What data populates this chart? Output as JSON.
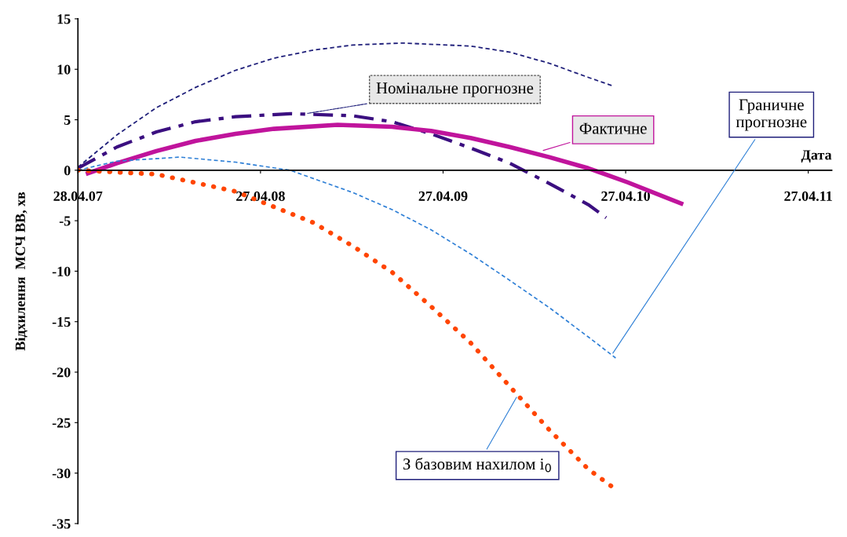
{
  "chart_data": {
    "type": "line",
    "xlabel": "Дата",
    "ylabel": "Відхилення  МСЧ ВВ, хв",
    "xlim": [
      "2007-04-28",
      "2011-06-13"
    ],
    "xticks": [
      {
        "value": "2007-04-28",
        "label": "28.04.07"
      },
      {
        "value": "2008-04-27",
        "label": "27.04.08"
      },
      {
        "value": "2009-04-27",
        "label": "27.04.09"
      },
      {
        "value": "2010-04-27",
        "label": "27.04.10"
      },
      {
        "value": "2011-04-27",
        "label": "27.04.11"
      }
    ],
    "ylim": [
      -35,
      15
    ],
    "yticks": [
      -35,
      -30,
      -25,
      -20,
      -15,
      -10,
      -5,
      0,
      5,
      10,
      15
    ],
    "grid": false,
    "legend": false,
    "marker": "none",
    "series": [
      {
        "color": "#1f1f7a",
        "line_style": "dashed",
        "x": [
          "2007-04-28",
          "2007-07-15",
          "2007-10-02",
          "2007-12-19",
          "2008-03-08",
          "2008-05-24",
          "2008-08-11",
          "2008-10-28",
          "2009-02-05",
          "2009-06-21",
          "2009-09-07",
          "2009-11-25",
          "2010-02-11",
          "2010-04-04"
        ],
        "values": [
          0.3,
          3.5,
          6.2,
          8.2,
          9.9,
          11.1,
          11.9,
          12.4,
          12.6,
          12.3,
          11.7,
          10.6,
          9.2,
          8.3
        ]
      },
      {
        "color": "#3b0f80",
        "line_style": "dashdot",
        "x": [
          "2007-04-28",
          "2007-07-15",
          "2007-10-02",
          "2007-12-19",
          "2008-03-08",
          "2008-06-25",
          "2008-10-28",
          "2009-01-15",
          "2009-04-03",
          "2009-06-21",
          "2009-09-07",
          "2009-11-25",
          "2010-02-11",
          "2010-03-19"
        ],
        "values": [
          0.2,
          2.3,
          3.8,
          4.8,
          5.3,
          5.6,
          5.4,
          4.8,
          3.6,
          2.2,
          0.7,
          -1.3,
          -3.4,
          -4.7
        ]
      },
      {
        "color": "#c0149c",
        "line_style": "solid",
        "x": [
          "2007-05-18",
          "2007-07-15",
          "2007-10-02",
          "2007-12-19",
          "2008-03-08",
          "2008-05-24",
          "2008-09-28",
          "2009-01-15",
          "2009-04-03",
          "2009-06-21",
          "2009-09-07",
          "2009-11-25",
          "2010-02-11",
          "2010-05-01",
          "2010-08-16"
        ],
        "values": [
          -0.3,
          0.7,
          1.9,
          2.9,
          3.6,
          4.1,
          4.5,
          4.3,
          3.9,
          3.2,
          2.3,
          1.3,
          0.2,
          -1.2,
          -3.3
        ]
      },
      {
        "color": "#2e7fd6",
        "line_style": "dashed",
        "x": [
          "2007-04-28",
          "2007-07-15",
          "2007-11-18",
          "2008-03-08",
          "2008-06-25",
          "2008-10-28",
          "2009-01-15",
          "2009-04-03",
          "2009-06-21",
          "2009-09-07",
          "2009-11-25",
          "2010-02-11",
          "2010-04-07"
        ],
        "values": [
          0,
          0.9,
          1.3,
          0.8,
          0,
          -2.2,
          -3.9,
          -5.9,
          -8.3,
          -10.9,
          -13.6,
          -16.5,
          -18.6
        ]
      },
      {
        "color": "#ff4500",
        "line_style": "dotted",
        "x": [
          "2007-04-28",
          "2007-10-02",
          "2008-03-08",
          "2008-08-11",
          "2008-10-28",
          "2009-01-15",
          "2009-04-03",
          "2009-06-21",
          "2009-09-07",
          "2009-11-25",
          "2010-02-11",
          "2010-04-04"
        ],
        "values": [
          0,
          -0.4,
          -2.1,
          -5.2,
          -7.5,
          -10.1,
          -13.5,
          -17.1,
          -21.4,
          -25.7,
          -29.6,
          -31.5
        ]
      }
    ],
    "annotations": [
      {
        "text": "Номінальне прогнозне",
        "x": "2008-07-26",
        "y": 5.6
      },
      {
        "text": "Фактичне",
        "x": "2009-11-09",
        "y": 1.9
      },
      {
        "text": "Граничне\nпрогнозне",
        "x": "2010-03-30",
        "y": -18.3
      },
      {
        "text": "З базовим нахилом i$_{0}$",
        "x": "2009-09-23",
        "y": -22.3
      }
    ]
  }
}
